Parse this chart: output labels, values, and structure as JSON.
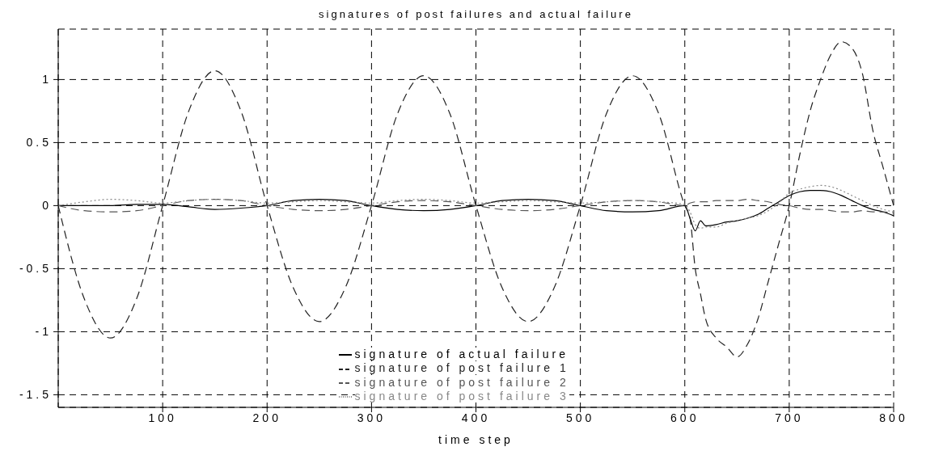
{
  "chart_data": {
    "type": "line",
    "title": "signatures of post failures and actual failure",
    "xlabel": "time step",
    "x": [
      0,
      25,
      50,
      75,
      100,
      125,
      150,
      175,
      200,
      225,
      250,
      275,
      300,
      325,
      350,
      375,
      400,
      425,
      450,
      475,
      500,
      525,
      550,
      575,
      600,
      605,
      610,
      615,
      620,
      630,
      640,
      650,
      660,
      670,
      680,
      690,
      700,
      710,
      720,
      730,
      740,
      750,
      760,
      770,
      780,
      790,
      800
    ],
    "series": [
      {
        "name": "signature of actual failure",
        "color": "#000000",
        "line_style": "solid",
        "values": [
          0,
          0,
          0,
          0.01,
          0.01,
          -0.01,
          -0.03,
          -0.02,
          0,
          0.04,
          0.05,
          0.04,
          0,
          -0.03,
          -0.04,
          -0.03,
          0,
          0.04,
          0.05,
          0.04,
          0,
          -0.04,
          -0.05,
          -0.04,
          0,
          -0.1,
          -0.2,
          -0.12,
          -0.16,
          -0.15,
          -0.13,
          -0.12,
          -0.1,
          -0.07,
          -0.02,
          0.03,
          0.08,
          0.11,
          0.12,
          0.12,
          0.11,
          0.08,
          0.04,
          0,
          -0.03,
          -0.05,
          -0.08
        ]
      },
      {
        "name": "signature of post failure 1",
        "color": "#222222",
        "line_style": "dashed",
        "values": [
          0,
          -0.74,
          -1.05,
          -0.74,
          0,
          0.75,
          1.07,
          0.75,
          0,
          -0.65,
          -0.92,
          -0.65,
          0,
          0.73,
          1.03,
          0.73,
          0,
          -0.65,
          -0.92,
          -0.65,
          0,
          0.73,
          1.03,
          0.73,
          0,
          -0.1,
          -0.5,
          -0.7,
          -0.9,
          -1.05,
          -1.12,
          -1.2,
          -1.1,
          -0.9,
          -0.6,
          -0.3,
          0,
          0.4,
          0.75,
          1,
          1.2,
          1.3,
          1.25,
          1.05,
          0.6,
          0.3,
          0
        ]
      },
      {
        "name": "signature of post failure 2",
        "color": "#555555",
        "line_style": "dashed",
        "values": [
          0,
          -0.04,
          -0.05,
          -0.04,
          0,
          0.04,
          0.05,
          0.04,
          0,
          -0.03,
          -0.04,
          -0.03,
          0,
          0.03,
          0.04,
          0.03,
          0,
          -0.03,
          -0.04,
          -0.03,
          0,
          0.03,
          0.04,
          0.03,
          0,
          0.02,
          0.03,
          0.03,
          0.03,
          0.04,
          0.04,
          0.04,
          0.05,
          0.04,
          0.03,
          0.01,
          0,
          -0.02,
          -0.03,
          -0.03,
          -0.04,
          -0.05,
          -0.05,
          -0.04,
          -0.05,
          -0.05,
          -0.06
        ]
      },
      {
        "name": "signature of post failure 3",
        "color": "#888888",
        "line_style": "dotted",
        "values": [
          0,
          0.03,
          0.05,
          0.04,
          0.02,
          0.04,
          0.05,
          0.04,
          0.02,
          0.03,
          0.04,
          0.03,
          0.02,
          0.04,
          0.05,
          0.04,
          0.02,
          0.03,
          0.04,
          0.03,
          0.02,
          0.03,
          0.04,
          0.03,
          0.01,
          -0.05,
          -0.15,
          -0.18,
          -0.17,
          -0.17,
          -0.14,
          -0.12,
          -0.1,
          -0.08,
          -0.04,
          0.02,
          0.1,
          0.13,
          0.15,
          0.16,
          0.15,
          0.12,
          0.08,
          0.04,
          0,
          -0.03,
          -0.05
        ]
      }
    ],
    "xlim": [
      0,
      800
    ],
    "xticks": [
      100,
      200,
      300,
      400,
      500,
      600,
      700,
      800
    ],
    "ylim": [
      -1.6,
      1.4
    ],
    "yticks": [
      -1.5,
      -1,
      -0.5,
      0,
      0.5,
      1
    ],
    "grid": true,
    "legend": "bottom"
  }
}
